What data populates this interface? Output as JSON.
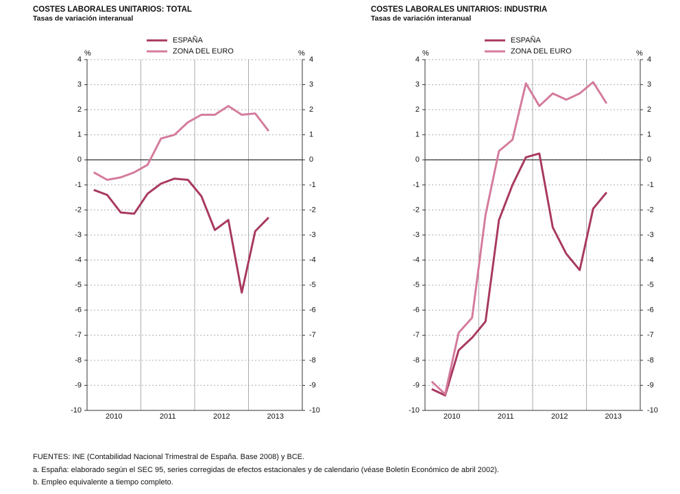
{
  "chart_data": [
    {
      "type": "line",
      "title": "COSTES LABORALES UNITARIOS: TOTAL",
      "subtitle": "Tasas de variación interanual",
      "y_unit": "%",
      "x": [
        2010.125,
        2010.375,
        2010.625,
        2010.875,
        2011.125,
        2011.375,
        2011.625,
        2011.875,
        2012.125,
        2012.375,
        2012.625,
        2012.875,
        2013.125,
        2013.375
      ],
      "xlim": [
        2010,
        2014
      ],
      "xticks": [
        {
          "value": 2010.5,
          "label": "2010"
        },
        {
          "value": 2011.5,
          "label": "2011"
        },
        {
          "value": 2012.5,
          "label": "2012"
        },
        {
          "value": 2013.5,
          "label": "2013"
        }
      ],
      "ylim": [
        -10,
        4
      ],
      "yticks": [
        -10,
        -9,
        -8,
        -7,
        -6,
        -5,
        -4,
        -3,
        -2,
        -1,
        0,
        1,
        2,
        3,
        4
      ],
      "grid": true,
      "legend": "top",
      "series": [
        {
          "name": "ESPAÑA",
          "color": "#a8395f",
          "values": [
            -1.2,
            -1.4,
            -2.1,
            -2.15,
            -1.35,
            -0.95,
            -0.75,
            -0.8,
            -1.45,
            -2.8,
            -2.4,
            -5.3,
            -2.85,
            -2.3
          ]
        },
        {
          "name": "ZONA DEL EURO",
          "color": "#d47b9d",
          "values": [
            -0.5,
            -0.8,
            -0.7,
            -0.5,
            -0.2,
            0.85,
            1.0,
            1.5,
            1.8,
            1.8,
            2.15,
            1.8,
            1.85,
            1.15
          ]
        }
      ]
    },
    {
      "type": "line",
      "title": "COSTES LABORALES UNITARIOS: INDUSTRIA",
      "subtitle": "Tasas de variación interanual",
      "y_unit": "%",
      "x": [
        2010.125,
        2010.375,
        2010.625,
        2010.875,
        2011.125,
        2011.375,
        2011.625,
        2011.875,
        2012.125,
        2012.375,
        2012.625,
        2012.875,
        2013.125,
        2013.375
      ],
      "xlim": [
        2010,
        2014
      ],
      "xticks": [
        {
          "value": 2010.5,
          "label": "2010"
        },
        {
          "value": 2011.5,
          "label": "2011"
        },
        {
          "value": 2012.5,
          "label": "2012"
        },
        {
          "value": 2013.5,
          "label": "2013"
        }
      ],
      "ylim": [
        -10,
        4
      ],
      "yticks": [
        -10,
        -9,
        -8,
        -7,
        -6,
        -5,
        -4,
        -3,
        -2,
        -1,
        0,
        1,
        2,
        3,
        4
      ],
      "grid": true,
      "legend": "top",
      "series": [
        {
          "name": "ESPAÑA",
          "color": "#a8395f",
          "values": [
            -9.15,
            -9.4,
            -7.6,
            -7.1,
            -6.45,
            -2.4,
            -1.0,
            0.1,
            0.25,
            -2.7,
            -3.75,
            -4.4,
            -1.95,
            -1.3
          ]
        },
        {
          "name": "ZONA DEL EURO",
          "color": "#d47b9d",
          "values": [
            -8.85,
            -9.35,
            -6.9,
            -6.3,
            -2.2,
            0.35,
            0.8,
            3.05,
            2.15,
            2.65,
            2.4,
            2.65,
            3.1,
            2.25
          ]
        }
      ]
    }
  ],
  "notes": [
    "FUENTES: INE (Contabilidad Nacional Trimestral de España. Base 2008) y BCE.",
    "a. España: elaborado según el SEC 95, series corregidas de efectos estacionales y de calendario (véase Boletín Económico de abril 2002).",
    "b. Empleo equivalente a tiempo completo."
  ]
}
